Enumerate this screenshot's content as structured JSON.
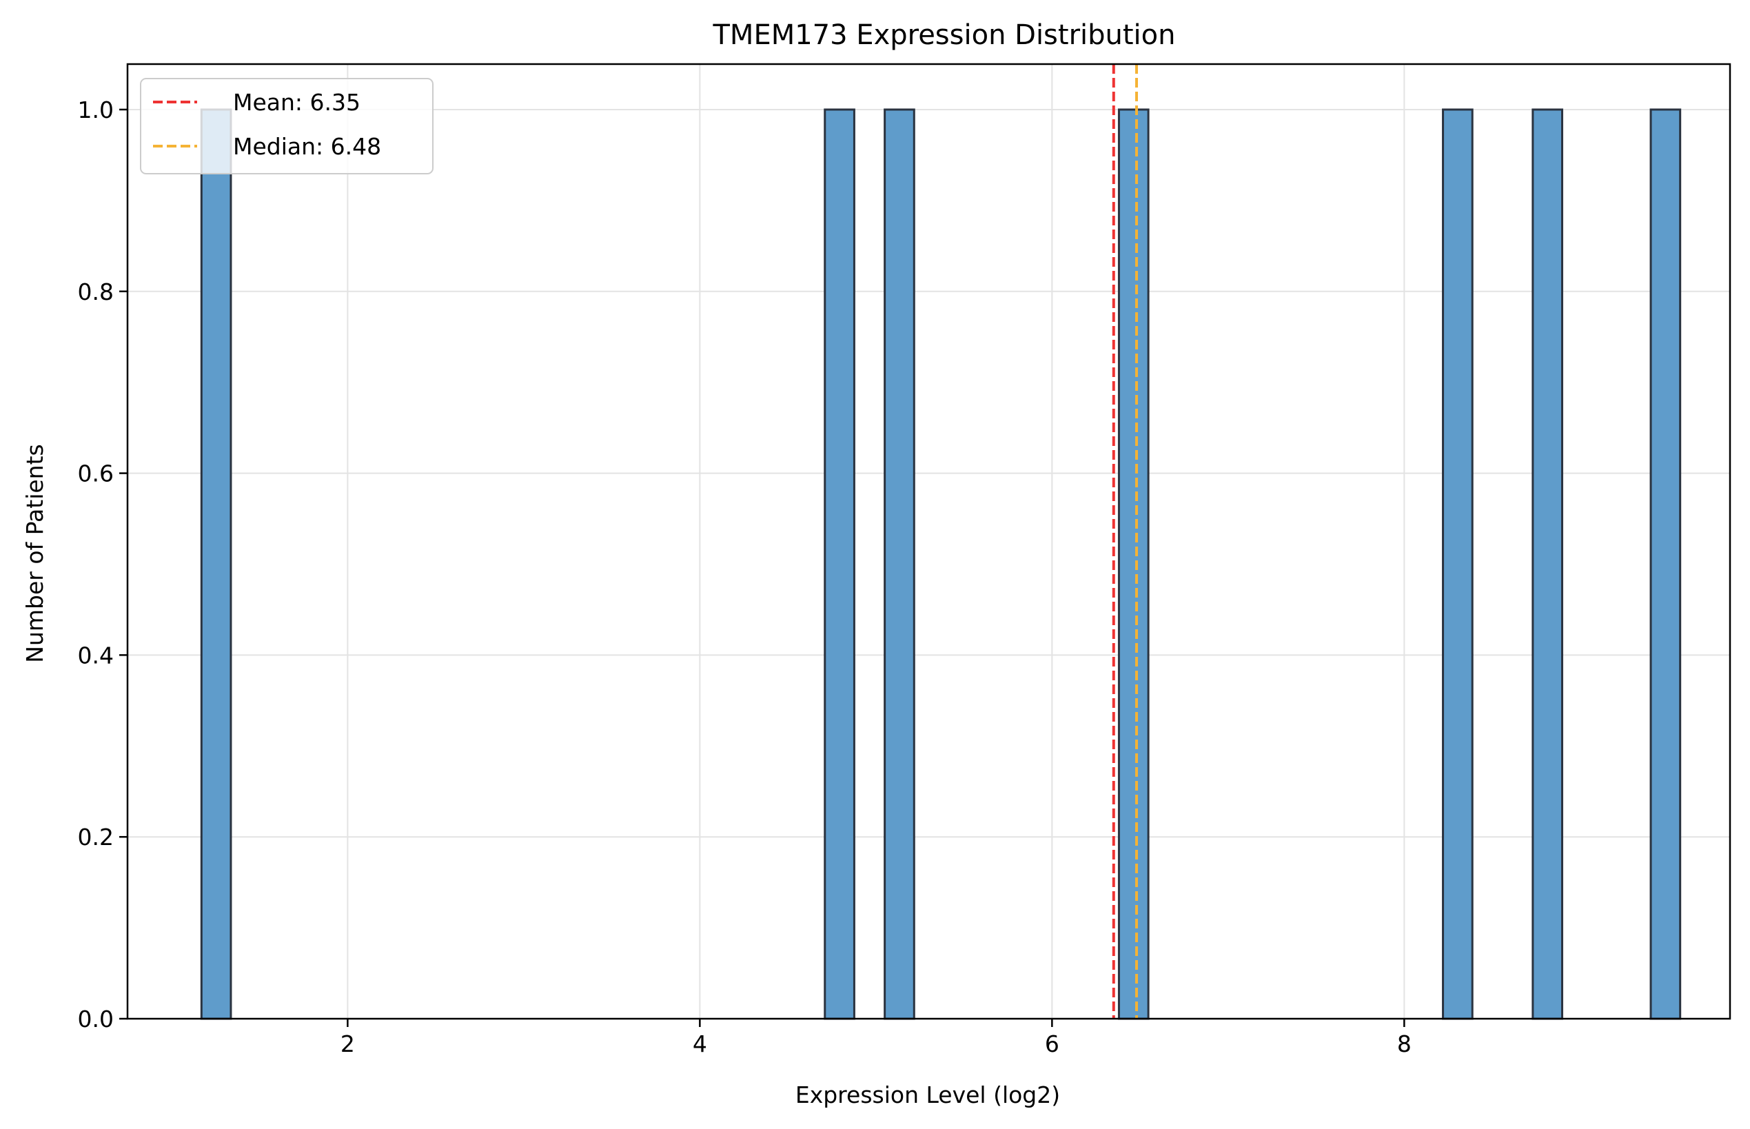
{
  "chart_data": {
    "type": "bar",
    "title": "TMEM173 Expression Distribution",
    "xlabel": "Expression Level (log2)",
    "ylabel": "Number of Patients",
    "xlim": [
      0.75,
      9.85
    ],
    "ylim": [
      0,
      1.05
    ],
    "x_ticks": [
      2,
      4,
      6,
      8
    ],
    "y_ticks": [
      0.0,
      0.2,
      0.4,
      0.6,
      0.8,
      1.0
    ],
    "x_tick_labels": [
      "2",
      "4",
      "6",
      "8"
    ],
    "y_tick_labels": [
      "0.0",
      "0.2",
      "0.4",
      "0.6",
      "0.8",
      "1.0"
    ],
    "grid": true,
    "bin_width": 0.1669,
    "bins": [
      {
        "start": 1.17,
        "count": 1
      },
      {
        "start": 4.71,
        "count": 1
      },
      {
        "start": 5.05,
        "count": 1
      },
      {
        "start": 6.38,
        "count": 1
      },
      {
        "start": 8.22,
        "count": 1
      },
      {
        "start": 8.73,
        "count": 1
      },
      {
        "start": 9.4,
        "count": 1
      }
    ],
    "reference_lines": [
      {
        "name": "Mean: 6.35",
        "x": 6.35,
        "color": "#ee3333"
      },
      {
        "name": "Median: 6.48",
        "x": 6.48,
        "color": "#f5b335"
      }
    ],
    "legend_position": "upper-left",
    "bar_color": "#5f9ccb",
    "bar_edge_color": "#2a3340"
  }
}
